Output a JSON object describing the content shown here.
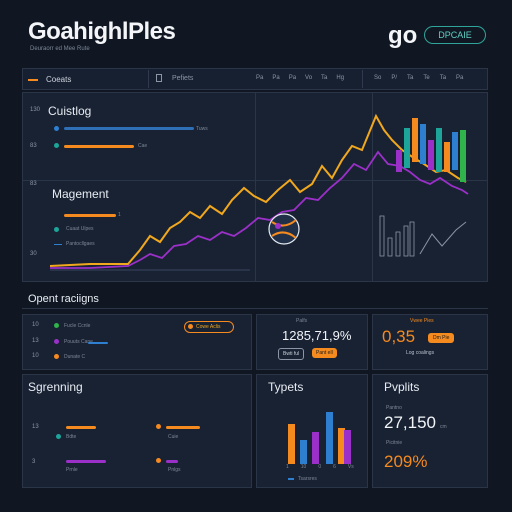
{
  "header": {
    "title": "GoahighlPles",
    "subtitle": "Deuraorr ed Mee Rute",
    "logo_text": "go",
    "badge_text": "DPCAIE"
  },
  "toolbar": {
    "item1": "Coeats",
    "item2": "Pefiets",
    "filters": [
      "Pa",
      "Pa",
      "Pa",
      "Vo",
      "Ta",
      "Hg"
    ],
    "filters2": [
      "So",
      "P/",
      "Ta",
      "Te",
      "Ta",
      "Pa"
    ]
  },
  "main": {
    "section1_title": "Cuistlog",
    "section2_title": "Magement",
    "row_numbers": [
      "130",
      "83",
      "83",
      "30"
    ],
    "bar1_value": "Tuws",
    "bar2_value": "Cae",
    "bar3_value": "1",
    "item_a": "Cuaat Ulpes",
    "item_b": "Pantocllgaes"
  },
  "section_label": "Opent raciigns",
  "left_list": {
    "numbers": [
      "10",
      "13",
      "10"
    ],
    "items": [
      "Fucle Ccnle",
      "Pouuts Cane",
      "Dunate C"
    ]
  },
  "pill_label": "Cowe Aclis",
  "metric_card": {
    "top": "Palfs",
    "value": "1285,71,9%",
    "chip1": "Bwti ful",
    "chip2": "Pant ell"
  },
  "orange_card": {
    "top": "Vwee Pies",
    "value": "0,35",
    "chip": "Dm Pie",
    "bottom": "Log coalings"
  },
  "bottom_left": {
    "title": "Sgrenning",
    "numbers": [
      "13",
      "3"
    ],
    "items": [
      "Bdte",
      "Prnle"
    ],
    "items2": [
      "Cuie",
      "Pnlgs"
    ]
  },
  "types_card": {
    "title": "Typets",
    "axis": [
      "1",
      "10",
      "0",
      "6",
      "Vs"
    ],
    "footer": "Tsarsres"
  },
  "profits_card": {
    "title": "Pvplits",
    "sub1": "Pantno",
    "value": "27,150",
    "unit": "cm",
    "sub2": "Picitnie",
    "percent": "209%"
  },
  "colors": {
    "orange": "#f58a1f",
    "blue": "#2f7fd1",
    "teal": "#1ea59a",
    "green": "#2fb34a",
    "purple": "#9b30c8",
    "gold": "#f2a81d"
  }
}
